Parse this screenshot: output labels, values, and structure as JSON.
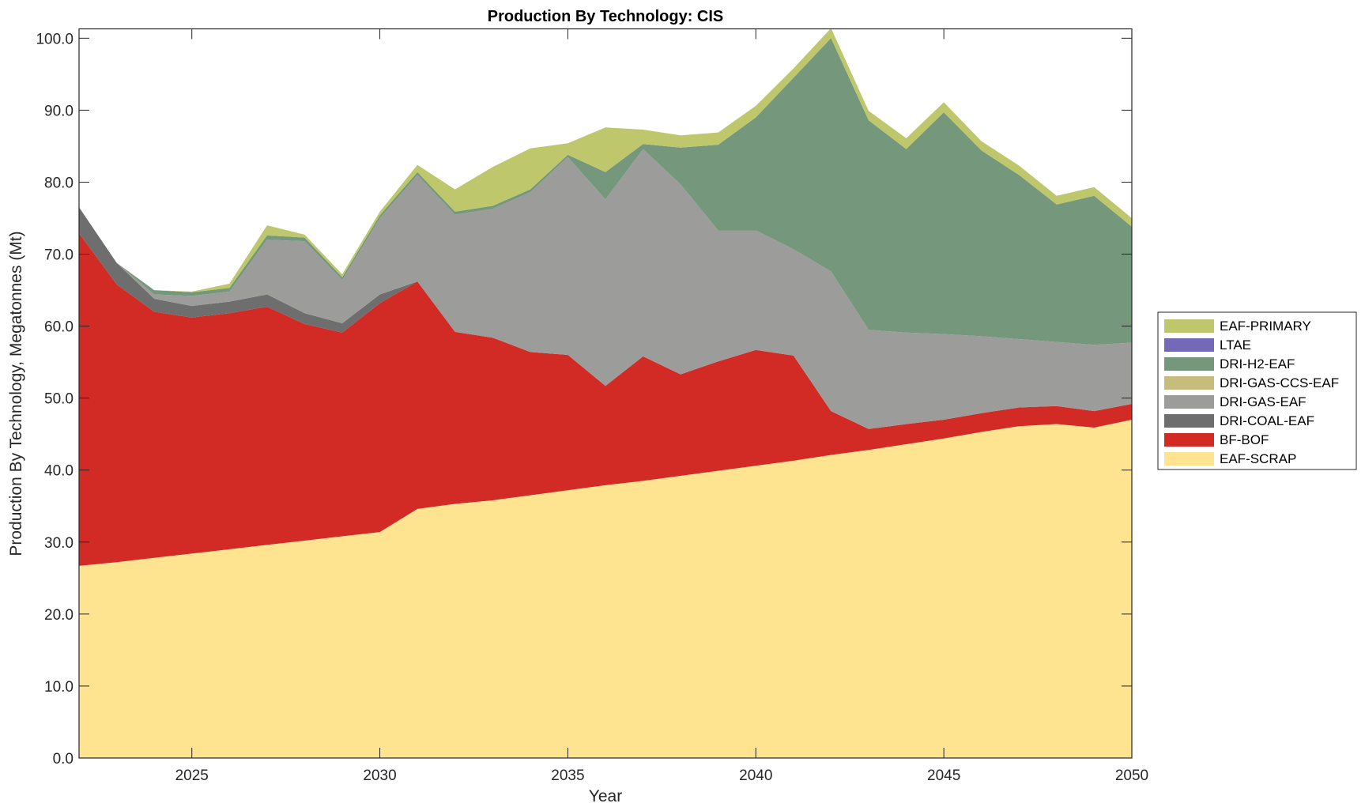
{
  "chart_data": {
    "type": "area",
    "stacked": true,
    "title": "Production By Technology: CIS",
    "xlabel": "Year",
    "ylabel": "Production By Technology, Megatonnes (Mt)",
    "xlim": [
      2022,
      2050
    ],
    "ylim": [
      0,
      101.3
    ],
    "xticks": [
      "2025",
      "2030",
      "2035",
      "2040",
      "2045",
      "2050"
    ],
    "yticks": [
      "0.0",
      "10.0",
      "20.0",
      "30.0",
      "40.0",
      "50.0",
      "60.0",
      "70.0",
      "80.0",
      "90.0",
      "100.0"
    ],
    "grid": false,
    "legend_position": "right",
    "x": [
      2022,
      2023,
      2024,
      2025,
      2026,
      2027,
      2028,
      2029,
      2030,
      2031,
      2032,
      2033,
      2034,
      2035,
      2036,
      2037,
      2038,
      2039,
      2040,
      2041,
      2042,
      2043,
      2044,
      2045,
      2046,
      2047,
      2048,
      2049,
      2050
    ],
    "series": [
      {
        "name": "EAF-SCRAP",
        "color": "#fee391",
        "values": [
          26.7,
          27.2,
          27.8,
          28.4,
          29.0,
          29.6,
          30.2,
          30.8,
          31.4,
          34.6,
          35.3,
          35.8,
          36.5,
          37.2,
          37.9,
          38.5,
          39.2,
          39.9,
          40.6,
          41.3,
          42.1,
          42.8,
          43.6,
          44.4,
          45.3,
          46.1,
          46.4,
          45.9,
          47.0
        ]
      },
      {
        "name": "BF-BOF",
        "color": "#d22b25",
        "values": [
          46.2,
          38.6,
          34.2,
          32.8,
          32.8,
          33.1,
          30.1,
          28.3,
          31.8,
          31.6,
          23.9,
          22.6,
          19.9,
          18.8,
          13.8,
          17.3,
          14.1,
          15.2,
          16.1,
          14.6,
          6.1,
          2.9,
          2.8,
          2.6,
          2.6,
          2.6,
          2.5,
          2.3,
          2.2
        ]
      },
      {
        "name": "DRI-COAL-EAF",
        "color": "#6e6e6e",
        "values": [
          3.6,
          3.0,
          1.8,
          1.6,
          1.6,
          1.7,
          1.5,
          1.3,
          1.2,
          0,
          0,
          0,
          0,
          0,
          0,
          0,
          0,
          0,
          0,
          0,
          0,
          0,
          0,
          0,
          0,
          0,
          0,
          0,
          0
        ]
      },
      {
        "name": "DRI-GAS-EAF",
        "color": "#9c9c9a",
        "values": [
          0,
          0,
          0.6,
          1.4,
          1.4,
          7.6,
          10.0,
          6.0,
          10.6,
          14.8,
          16.3,
          17.9,
          22.2,
          27.5,
          25.9,
          28.8,
          26.4,
          18.2,
          16.6,
          14.8,
          19.4,
          13.8,
          12.7,
          11.9,
          10.7,
          9.5,
          8.9,
          9.2,
          8.5
        ]
      },
      {
        "name": "DRI-GAS-CCS-EAF",
        "color": "#c5bc7d",
        "values": [
          0,
          0,
          0,
          0,
          0,
          0,
          0,
          0,
          0,
          0,
          0,
          0,
          0,
          0,
          0,
          0,
          0,
          0,
          0,
          0,
          0,
          0,
          0,
          0,
          0,
          0,
          0,
          0,
          0
        ]
      },
      {
        "name": "DRI-H2-EAF",
        "color": "#75977c",
        "values": [
          0,
          0,
          0.6,
          0.5,
          0.5,
          0.6,
          0.5,
          0.4,
          0.4,
          0.4,
          0.4,
          0.4,
          0.4,
          0.3,
          3.8,
          0.7,
          5.1,
          11.9,
          15.7,
          23.8,
          32.4,
          29.1,
          25.5,
          30.8,
          25.8,
          22.8,
          19.1,
          20.7,
          16.1
        ]
      },
      {
        "name": "LTAE",
        "color": "#7369b8",
        "values": [
          0,
          0,
          0,
          0,
          0,
          0,
          0,
          0,
          0,
          0,
          0,
          0,
          0,
          0,
          0,
          0,
          0,
          0,
          0,
          0,
          0,
          0,
          0,
          0,
          0,
          0,
          0,
          0,
          0
        ]
      },
      {
        "name": "EAF-PRIMARY",
        "color": "#bec76b",
        "values": [
          0,
          0,
          0,
          0.1,
          0.6,
          1.4,
          0.4,
          0.4,
          0.5,
          1.0,
          3.1,
          5.4,
          5.7,
          1.6,
          6.2,
          2.0,
          1.7,
          1.7,
          1.6,
          1.3,
          1.4,
          1.3,
          1.5,
          1.4,
          1.3,
          1.3,
          1.2,
          1.2,
          1.2
        ]
      }
    ]
  }
}
